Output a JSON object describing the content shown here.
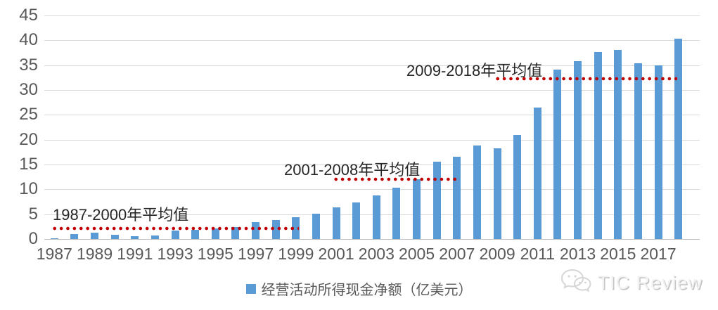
{
  "chart_data": {
    "type": "bar",
    "title": "",
    "legend_label": "经营活动所得现金净额（亿美元）",
    "ylabel": "",
    "xlabel": "",
    "ylim": [
      0,
      45
    ],
    "ytick_step": 5,
    "yticks": [
      0,
      5,
      10,
      15,
      20,
      25,
      30,
      35,
      40,
      45
    ],
    "x_tick_labels": [
      "1987",
      "1989",
      "1991",
      "1993",
      "1995",
      "1997",
      "1999",
      "2001",
      "2003",
      "2005",
      "2007",
      "2009",
      "2011",
      "2013",
      "2015",
      "2017"
    ],
    "years": [
      1987,
      1988,
      1989,
      1990,
      1991,
      1992,
      1993,
      1994,
      1995,
      1996,
      1997,
      1998,
      1999,
      2000,
      2001,
      2002,
      2003,
      2004,
      2005,
      2006,
      2007,
      2008,
      2009,
      2010,
      2011,
      2012,
      2013,
      2014,
      2015,
      2016,
      2017,
      2018
    ],
    "values": [
      0.1,
      1.0,
      1.3,
      0.8,
      0.6,
      0.7,
      1.7,
      1.8,
      2.1,
      2.4,
      3.4,
      3.8,
      4.4,
      5.1,
      6.3,
      7.3,
      8.8,
      10.4,
      12.0,
      15.6,
      16.6,
      18.8,
      18.3,
      21.0,
      26.4,
      34.1,
      35.8,
      37.7,
      38.1,
      35.4,
      34.9,
      40.4
    ],
    "grid": true,
    "legend_position": "bottom-center",
    "bar_color": "#5B9BD5",
    "avg_line_color": "#C00000",
    "gridline_color": "#D9D9D9",
    "axis_text_color": "#595959",
    "annotations": [
      {
        "label": "1987-2000年平均值",
        "value": 2.1,
        "span": [
          1987,
          2000
        ]
      },
      {
        "label": "2001-2008年平均值",
        "value": 12.0,
        "span": [
          2001,
          2008
        ]
      },
      {
        "label": "2009-2018年平均值",
        "value": 32.2,
        "span": [
          2009,
          2018
        ]
      }
    ]
  },
  "watermark": {
    "brand": "TIC Review",
    "icon": "wechat-logo-icon"
  }
}
